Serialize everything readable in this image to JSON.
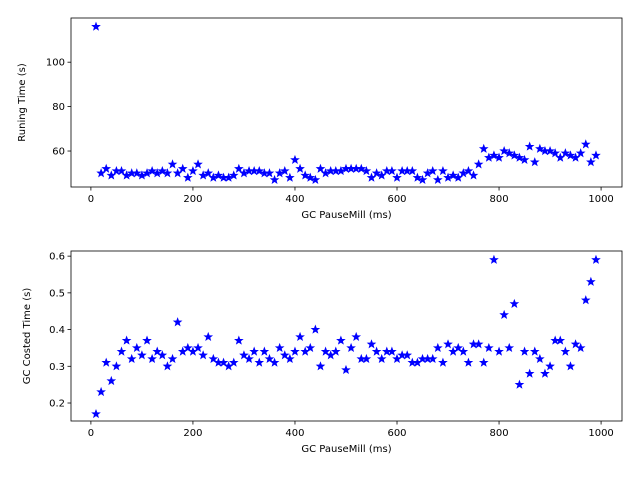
{
  "chart_data": [
    {
      "type": "scatter",
      "title": "",
      "xlabel": "GC PauseMill (ms)",
      "ylabel": "Runing Time (s)",
      "xlim": [
        -39,
        1041
      ],
      "ylim": [
        43.8,
        119.9
      ],
      "xticks": [
        0,
        200,
        400,
        600,
        800,
        1000
      ],
      "yticks": [
        60,
        80,
        100
      ],
      "marker": "star",
      "color": "#0000ff",
      "x": [
        10,
        20,
        30,
        40,
        50,
        60,
        70,
        80,
        90,
        100,
        110,
        120,
        130,
        140,
        150,
        160,
        170,
        180,
        190,
        200,
        210,
        220,
        230,
        240,
        250,
        260,
        270,
        280,
        290,
        300,
        310,
        320,
        330,
        340,
        350,
        360,
        370,
        380,
        390,
        400,
        410,
        420,
        430,
        440,
        450,
        460,
        470,
        480,
        490,
        500,
        510,
        520,
        530,
        540,
        550,
        560,
        570,
        580,
        590,
        600,
        610,
        620,
        630,
        640,
        650,
        660,
        670,
        680,
        690,
        700,
        710,
        720,
        730,
        740,
        750,
        760,
        770,
        780,
        790,
        800,
        810,
        820,
        830,
        840,
        850,
        860,
        870,
        880,
        890,
        900,
        910,
        920,
        930,
        940,
        950,
        960,
        970,
        980,
        990
      ],
      "y": [
        116,
        50,
        52,
        49,
        51,
        51,
        49,
        50,
        50,
        49,
        50,
        51,
        50,
        51,
        50,
        54,
        50,
        52,
        48,
        51,
        54,
        49,
        50,
        48,
        49,
        48,
        48,
        49,
        52,
        50,
        51,
        51,
        51,
        50,
        50,
        47,
        50,
        51,
        48,
        56,
        52,
        49,
        48,
        47,
        52,
        50,
        51,
        51,
        51,
        52,
        52,
        52,
        52,
        51,
        48,
        50,
        49,
        51,
        51,
        48,
        51,
        51,
        51,
        48,
        47,
        50,
        51,
        47,
        51,
        48,
        49,
        48,
        50,
        51,
        49,
        54,
        61,
        57,
        58,
        57,
        60,
        59,
        58,
        57,
        56,
        62,
        55,
        61,
        60,
        60,
        59,
        57,
        59,
        58,
        57,
        59,
        63,
        55,
        58
      ]
    },
    {
      "type": "scatter",
      "title": "",
      "xlabel": "GC PauseMill (ms)",
      "ylabel": "GC Costed Time (s)",
      "xlim": [
        -39,
        1041
      ],
      "ylim": [
        0.151,
        0.614
      ],
      "xticks": [
        0,
        200,
        400,
        600,
        800,
        1000
      ],
      "yticks": [
        0.2,
        0.3,
        0.4,
        0.5,
        0.6
      ],
      "marker": "star",
      "color": "#0000ff",
      "x": [
        10,
        20,
        30,
        40,
        50,
        60,
        70,
        80,
        90,
        100,
        110,
        120,
        130,
        140,
        150,
        160,
        170,
        180,
        190,
        200,
        210,
        220,
        230,
        240,
        250,
        260,
        270,
        280,
        290,
        300,
        310,
        320,
        330,
        340,
        350,
        360,
        370,
        380,
        390,
        400,
        410,
        420,
        430,
        440,
        450,
        460,
        470,
        480,
        490,
        500,
        510,
        520,
        530,
        540,
        550,
        560,
        570,
        580,
        590,
        600,
        610,
        620,
        630,
        640,
        650,
        660,
        670,
        680,
        690,
        700,
        710,
        720,
        730,
        740,
        750,
        760,
        770,
        780,
        790,
        800,
        810,
        820,
        830,
        840,
        850,
        860,
        870,
        880,
        890,
        900,
        910,
        920,
        930,
        940,
        950,
        960,
        970,
        980,
        990
      ],
      "y": [
        0.17,
        0.23,
        0.31,
        0.26,
        0.3,
        0.34,
        0.37,
        0.32,
        0.35,
        0.33,
        0.37,
        0.32,
        0.34,
        0.33,
        0.3,
        0.32,
        0.42,
        0.34,
        0.35,
        0.34,
        0.35,
        0.33,
        0.38,
        0.32,
        0.31,
        0.31,
        0.3,
        0.31,
        0.37,
        0.33,
        0.32,
        0.34,
        0.31,
        0.34,
        0.32,
        0.31,
        0.35,
        0.33,
        0.32,
        0.34,
        0.38,
        0.34,
        0.35,
        0.4,
        0.3,
        0.34,
        0.33,
        0.34,
        0.37,
        0.29,
        0.35,
        0.38,
        0.32,
        0.32,
        0.36,
        0.34,
        0.32,
        0.34,
        0.34,
        0.32,
        0.33,
        0.33,
        0.31,
        0.31,
        0.32,
        0.32,
        0.32,
        0.35,
        0.31,
        0.36,
        0.34,
        0.35,
        0.34,
        0.31,
        0.36,
        0.36,
        0.31,
        0.35,
        0.59,
        0.34,
        0.44,
        0.35,
        0.47,
        0.25,
        0.34,
        0.28,
        0.34,
        0.32,
        0.28,
        0.3,
        0.37,
        0.37,
        0.34,
        0.3,
        0.36,
        0.35,
        0.48,
        0.53,
        0.59
      ]
    }
  ]
}
